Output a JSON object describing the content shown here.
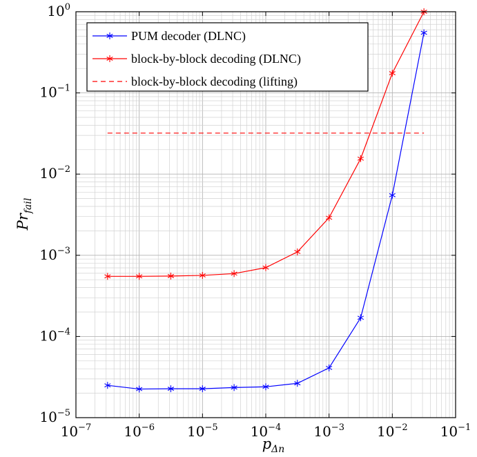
{
  "chart_data": {
    "type": "line",
    "title": "",
    "xlabel": "p",
    "xlabel_sub": "Δn",
    "ylabel": "Pr",
    "ylabel_sub": "fail",
    "xscale": "log",
    "yscale": "log",
    "xlim": [
      1e-07,
      0.1
    ],
    "ylim": [
      1e-05,
      1
    ],
    "grid": true,
    "legend_position": "top-left",
    "x_ticks": [
      {
        "base": "10",
        "exp": "−7"
      },
      {
        "base": "10",
        "exp": "−6"
      },
      {
        "base": "10",
        "exp": "−5"
      },
      {
        "base": "10",
        "exp": "−4"
      },
      {
        "base": "10",
        "exp": "−3"
      },
      {
        "base": "10",
        "exp": "−2"
      },
      {
        "base": "10",
        "exp": "−1"
      }
    ],
    "y_ticks": [
      {
        "base": "10",
        "exp": "−5"
      },
      {
        "base": "10",
        "exp": "−4"
      },
      {
        "base": "10",
        "exp": "−3"
      },
      {
        "base": "10",
        "exp": "−2"
      },
      {
        "base": "10",
        "exp": "−1"
      },
      {
        "base": "10",
        "exp": "0"
      }
    ],
    "x": [
      3.16e-07,
      1e-06,
      3.16e-06,
      1e-05,
      3.16e-05,
      0.0001,
      0.000316,
      0.001,
      0.00316,
      0.01,
      0.0316
    ],
    "series": [
      {
        "name": "PUM decoder (DLNC)",
        "color": "#0000ff",
        "marker": "asterisk",
        "style": "solid",
        "values": [
          2.5e-05,
          2.25e-05,
          2.27e-05,
          2.27e-05,
          2.35e-05,
          2.4e-05,
          2.65e-05,
          4.1e-05,
          0.00017,
          0.0055,
          0.55
        ]
      },
      {
        "name": "block-by-block decoding (DLNC)",
        "color": "#ff0000",
        "marker": "asterisk",
        "style": "solid",
        "values": [
          0.00055,
          0.00055,
          0.000555,
          0.000565,
          0.000595,
          0.000705,
          0.0011,
          0.0029,
          0.0155,
          0.175,
          1.0
        ]
      },
      {
        "name": "block-by-block decoding (lifting)",
        "color": "#ff0000",
        "marker": "none",
        "style": "dashed",
        "x": [
          3.16e-07,
          0.0316
        ],
        "values": [
          0.032,
          0.032
        ]
      }
    ]
  }
}
